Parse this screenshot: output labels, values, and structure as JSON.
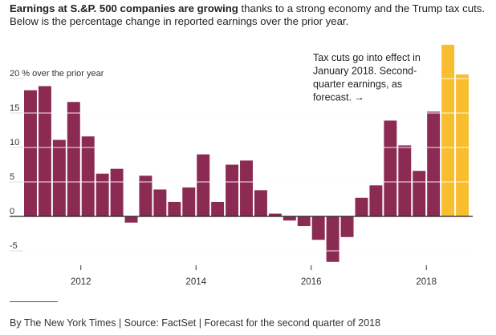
{
  "headline": {
    "bold": "Earnings at S.&P. 500 companies are growing",
    "rest": " thanks to a strong economy and the Trump tax cuts.",
    "line2": "Below is the percentage change in reported earnings over the prior year."
  },
  "footer": "By The New York Times | Source: FactSet | Forecast for the second quarter of 2018",
  "chart_data": {
    "type": "bar",
    "unit_label": "20 % over the prior year",
    "y_ticks": [
      {
        "value": 20,
        "label": ""
      },
      {
        "value": 15,
        "label": "15"
      },
      {
        "value": 10,
        "label": "10"
      },
      {
        "value": 5,
        "label": "5"
      },
      {
        "value": 0,
        "label": "0"
      },
      {
        "value": -5,
        "label": "-5"
      }
    ],
    "ylim": [
      -7,
      25
    ],
    "x_ticks": [
      {
        "label": "2012",
        "index": 3.5
      },
      {
        "label": "2014",
        "index": 11.5
      },
      {
        "label": "2016",
        "index": 19.5
      },
      {
        "label": "2018",
        "index": 27.5
      }
    ],
    "values": [
      18.3,
      18.9,
      11.1,
      16.6,
      11.6,
      6.2,
      6.9,
      -0.9,
      5.9,
      3.9,
      2.1,
      4.2,
      9.0,
      2.1,
      7.5,
      8.1,
      3.8,
      0.4,
      -0.6,
      -1.4,
      -3.4,
      -6.6,
      -3.0,
      2.7,
      4.5,
      13.9,
      10.3,
      6.6,
      15.2,
      24.9,
      20.6
    ],
    "forecast_from_index": 29,
    "colors": {
      "actual": "#8b2a52",
      "forecast": "#f8be2f",
      "baseline": "#222222",
      "gridline": "#dddddd"
    },
    "annotation": [
      "Tax cuts go into effect in",
      "January 2018. Second-",
      "quarter earnings, as",
      "forecast. →"
    ]
  }
}
